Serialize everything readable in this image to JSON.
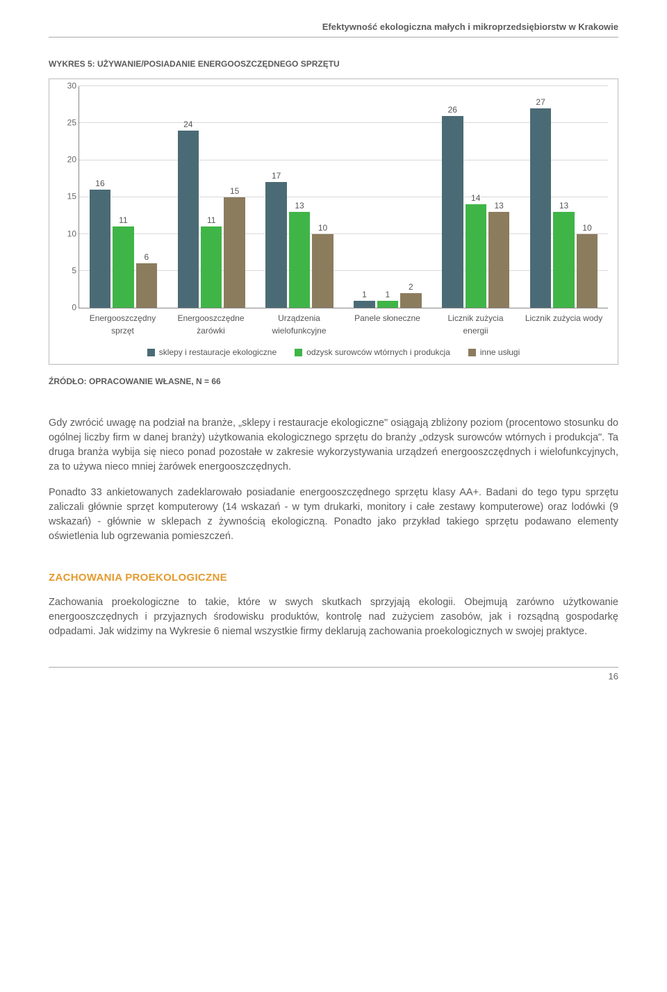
{
  "header": "Efektywność ekologiczna małych i mikroprzedsiębiorstw w Krakowie",
  "chart": {
    "title": "WYKRES 5: UŻYWANIE/POSIADANIE ENERGOOSZCZĘDNEGO SPRZĘTU",
    "type": "bar",
    "ymax": 30,
    "ytick_step": 5,
    "categories": [
      "Energooszczędny sprzęt",
      "Energooszczędne żarówki",
      "Urządzenia wielofunkcyjne",
      "Panele słoneczne",
      "Licznik zużycia energii",
      "Licznik zużycia wody"
    ],
    "series": [
      {
        "name": "sklepy i restauracje ekologiczne",
        "color": "#4a6b75",
        "values": [
          16,
          24,
          17,
          1,
          26,
          27
        ]
      },
      {
        "name": "odzysk surowców wtórnych i produkcja",
        "color": "#3fb547",
        "values": [
          11,
          11,
          13,
          1,
          14,
          13
        ]
      },
      {
        "name": "inne usługi",
        "color": "#8c7c5e",
        "values": [
          6,
          15,
          10,
          2,
          13,
          10
        ]
      }
    ],
    "grid_color": "#d9d9d9",
    "background_color": "#ffffff"
  },
  "source_line": "ŹRÓDŁO: OPRACOWANIE WŁASNE, N = 66",
  "paragraphs": [
    "Gdy zwrócić uwagę na podział na branże, „sklepy i restauracje ekologiczne\" osiągają zbliżony poziom (procentowo stosunku do ogólnej liczby firm w danej branży) użytkowania ekologicznego sprzętu do branży „odzysk surowców wtórnych i produkcja\". Ta druga branża wybija się nieco ponad pozostałe w zakresie wykorzystywania urządzeń energooszczędnych i wielofunkcyjnych, za to używa nieco mniej żarówek energooszczędnych.",
    "Ponadto 33 ankietowanych zadeklarowało posiadanie energooszczędnego sprzętu klasy AA+. Badani do tego typu sprzętu zaliczali głównie sprzęt komputerowy (14 wskazań - w tym drukarki, monitory i całe zestawy komputerowe) oraz lodówki (9 wskazań) - głównie w sklepach z żywnością ekologiczną. Ponadto jako przykład takiego sprzętu podawano elementy oświetlenia lub ogrzewania pomieszczeń."
  ],
  "section_heading": {
    "text": "ZACHOWANIA PROEKOLOGICZNE",
    "color": "#e59a2e"
  },
  "section_paragraph": "Zachowania proekologiczne to takie, które w swych skutkach sprzyjają ekologii. Obejmują zarówno użytkowanie energooszczędnych i przyjaznych środowisku produktów, kontrolę nad zużyciem zasobów, jak i rozsądną gospodarkę odpadami. Jak widzimy na Wykresie 6 niemal wszystkie firmy deklarują zachowania proekologicznych w swojej praktyce.",
  "page_number": "16"
}
